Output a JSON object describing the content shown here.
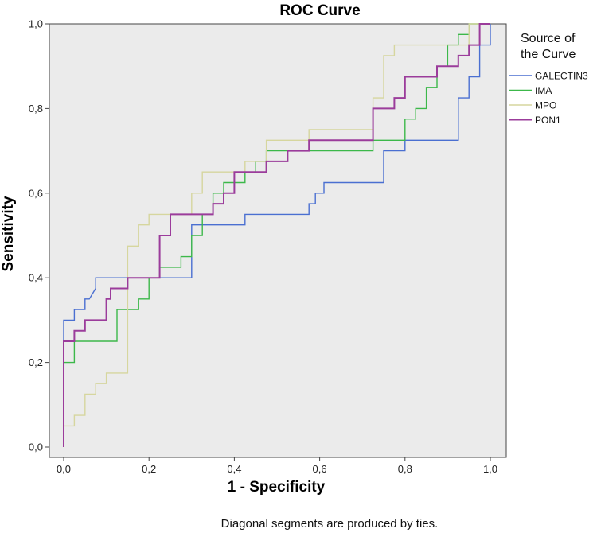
{
  "chart_data": {
    "type": "line",
    "title": "ROC Curve",
    "xlabel": "1 - Specificity",
    "ylabel": "Sensitivity",
    "xlim": [
      0,
      1
    ],
    "ylim": [
      0,
      1
    ],
    "xticks": [
      "0,0",
      "0,2",
      "0,4",
      "0,6",
      "0,8",
      "1,0"
    ],
    "yticks": [
      "0,0",
      "0,2",
      "0,4",
      "0,6",
      "0,8",
      "1,0"
    ],
    "grid": false,
    "plot_background": "#ebebeb",
    "legend": {
      "title_line1": "Source of",
      "title_line2": "the Curve",
      "placement": "right"
    },
    "footnote": "Diagonal segments are produced by ties.",
    "series": [
      {
        "name": "GALECTIN3",
        "color": "#4a6fd1",
        "points": [
          [
            0,
            0
          ],
          [
            0,
            0.3
          ],
          [
            0.025,
            0.3
          ],
          [
            0.025,
            0.325
          ],
          [
            0.05,
            0.325
          ],
          [
            0.05,
            0.35
          ],
          [
            0.06,
            0.35
          ],
          [
            0.075,
            0.375
          ],
          [
            0.075,
            0.4
          ],
          [
            0.3,
            0.4
          ],
          [
            0.3,
            0.525
          ],
          [
            0.425,
            0.525
          ],
          [
            0.425,
            0.55
          ],
          [
            0.575,
            0.55
          ],
          [
            0.575,
            0.575
          ],
          [
            0.59,
            0.575
          ],
          [
            0.59,
            0.6
          ],
          [
            0.61,
            0.6
          ],
          [
            0.61,
            0.625
          ],
          [
            0.75,
            0.625
          ],
          [
            0.75,
            0.7
          ],
          [
            0.8,
            0.7
          ],
          [
            0.8,
            0.725
          ],
          [
            0.925,
            0.725
          ],
          [
            0.925,
            0.825
          ],
          [
            0.95,
            0.825
          ],
          [
            0.95,
            0.875
          ],
          [
            0.975,
            0.875
          ],
          [
            0.975,
            0.95
          ],
          [
            1,
            0.95
          ],
          [
            1,
            1
          ]
        ]
      },
      {
        "name": "IMA",
        "color": "#3cb84a",
        "points": [
          [
            0,
            0
          ],
          [
            0,
            0.2
          ],
          [
            0.025,
            0.2
          ],
          [
            0.025,
            0.25
          ],
          [
            0.125,
            0.25
          ],
          [
            0.125,
            0.325
          ],
          [
            0.175,
            0.325
          ],
          [
            0.175,
            0.35
          ],
          [
            0.2,
            0.35
          ],
          [
            0.2,
            0.4
          ],
          [
            0.225,
            0.4
          ],
          [
            0.225,
            0.425
          ],
          [
            0.275,
            0.425
          ],
          [
            0.275,
            0.45
          ],
          [
            0.3,
            0.45
          ],
          [
            0.3,
            0.5
          ],
          [
            0.325,
            0.5
          ],
          [
            0.325,
            0.55
          ],
          [
            0.35,
            0.55
          ],
          [
            0.35,
            0.6
          ],
          [
            0.375,
            0.6
          ],
          [
            0.375,
            0.625
          ],
          [
            0.425,
            0.625
          ],
          [
            0.425,
            0.65
          ],
          [
            0.45,
            0.65
          ],
          [
            0.45,
            0.675
          ],
          [
            0.475,
            0.675
          ],
          [
            0.475,
            0.7
          ],
          [
            0.725,
            0.7
          ],
          [
            0.725,
            0.725
          ],
          [
            0.8,
            0.725
          ],
          [
            0.8,
            0.775
          ],
          [
            0.825,
            0.775
          ],
          [
            0.825,
            0.8
          ],
          [
            0.85,
            0.8
          ],
          [
            0.85,
            0.85
          ],
          [
            0.875,
            0.85
          ],
          [
            0.875,
            0.9
          ],
          [
            0.9,
            0.9
          ],
          [
            0.9,
            0.95
          ],
          [
            0.925,
            0.95
          ],
          [
            0.925,
            0.975
          ],
          [
            0.95,
            0.975
          ],
          [
            0.95,
            1
          ],
          [
            1,
            1
          ]
        ]
      },
      {
        "name": "MPO",
        "color": "#d6d69e",
        "points": [
          [
            0,
            0
          ],
          [
            0,
            0.05
          ],
          [
            0.025,
            0.05
          ],
          [
            0.025,
            0.075
          ],
          [
            0.05,
            0.075
          ],
          [
            0.05,
            0.125
          ],
          [
            0.075,
            0.125
          ],
          [
            0.075,
            0.15
          ],
          [
            0.1,
            0.15
          ],
          [
            0.1,
            0.175
          ],
          [
            0.15,
            0.175
          ],
          [
            0.15,
            0.475
          ],
          [
            0.175,
            0.475
          ],
          [
            0.175,
            0.525
          ],
          [
            0.2,
            0.525
          ],
          [
            0.2,
            0.55
          ],
          [
            0.3,
            0.55
          ],
          [
            0.3,
            0.6
          ],
          [
            0.325,
            0.6
          ],
          [
            0.325,
            0.65
          ],
          [
            0.425,
            0.65
          ],
          [
            0.425,
            0.675
          ],
          [
            0.475,
            0.675
          ],
          [
            0.475,
            0.725
          ],
          [
            0.575,
            0.725
          ],
          [
            0.575,
            0.75
          ],
          [
            0.725,
            0.75
          ],
          [
            0.725,
            0.825
          ],
          [
            0.75,
            0.825
          ],
          [
            0.75,
            0.925
          ],
          [
            0.775,
            0.925
          ],
          [
            0.775,
            0.95
          ],
          [
            0.95,
            0.95
          ],
          [
            0.95,
            1
          ],
          [
            1,
            1
          ]
        ]
      },
      {
        "name": "PON1",
        "color": "#9b3c9b",
        "points": [
          [
            0,
            0
          ],
          [
            0,
            0.25
          ],
          [
            0.025,
            0.25
          ],
          [
            0.025,
            0.275
          ],
          [
            0.05,
            0.275
          ],
          [
            0.05,
            0.3
          ],
          [
            0.1,
            0.3
          ],
          [
            0.1,
            0.35
          ],
          [
            0.11,
            0.35
          ],
          [
            0.11,
            0.375
          ],
          [
            0.15,
            0.375
          ],
          [
            0.15,
            0.4
          ],
          [
            0.225,
            0.4
          ],
          [
            0.225,
            0.5
          ],
          [
            0.25,
            0.5
          ],
          [
            0.25,
            0.55
          ],
          [
            0.35,
            0.55
          ],
          [
            0.35,
            0.575
          ],
          [
            0.375,
            0.575
          ],
          [
            0.375,
            0.6
          ],
          [
            0.4,
            0.6
          ],
          [
            0.4,
            0.65
          ],
          [
            0.475,
            0.65
          ],
          [
            0.475,
            0.675
          ],
          [
            0.525,
            0.675
          ],
          [
            0.525,
            0.7
          ],
          [
            0.575,
            0.7
          ],
          [
            0.575,
            0.725
          ],
          [
            0.725,
            0.725
          ],
          [
            0.725,
            0.8
          ],
          [
            0.775,
            0.8
          ],
          [
            0.775,
            0.825
          ],
          [
            0.8,
            0.825
          ],
          [
            0.8,
            0.875
          ],
          [
            0.875,
            0.875
          ],
          [
            0.875,
            0.9
          ],
          [
            0.925,
            0.9
          ],
          [
            0.925,
            0.925
          ],
          [
            0.95,
            0.925
          ],
          [
            0.95,
            0.95
          ],
          [
            0.975,
            0.95
          ],
          [
            0.975,
            1
          ],
          [
            1,
            1
          ]
        ]
      }
    ]
  }
}
